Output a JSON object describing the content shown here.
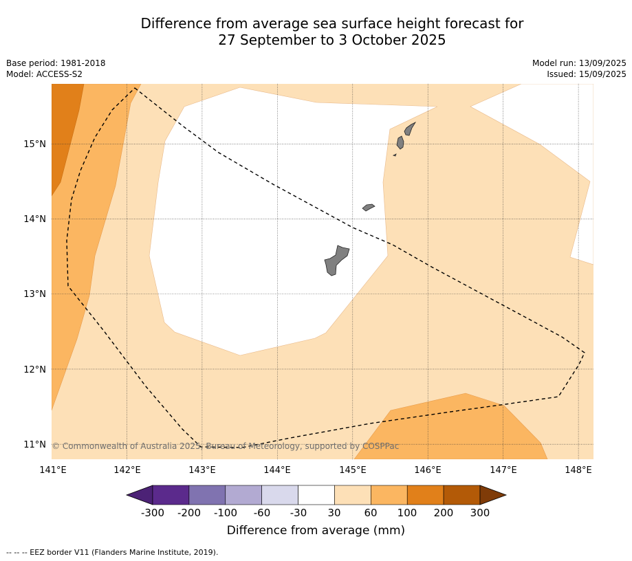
{
  "title": {
    "line1": "Difference from average sea surface height forecast for",
    "line2": "27 September to 3 October 2025"
  },
  "meta": {
    "base_period": "Base period: 1981-2018",
    "model": "Model: ACCESS-S2",
    "model_run": "Model run: 13/09/2025",
    "issued": "Issued: 15/09/2025"
  },
  "map": {
    "lon_range": [
      141,
      148.2
    ],
    "lat_range": [
      10.8,
      15.8
    ],
    "lon_ticks": [
      "141°E",
      "142°E",
      "143°E",
      "144°E",
      "145°E",
      "146°E",
      "147°E",
      "148°E"
    ],
    "lat_ticks": [
      "15°N",
      "14°N",
      "13°N",
      "12°N",
      "11°N"
    ],
    "copyright": "© Commonwealth of Australia 2025, Bureau of Meteorology, supported by COSPPac",
    "land_color": "#808080",
    "border_style": "dashed"
  },
  "colorbar": {
    "title": "Difference from average (mm)",
    "labels": [
      "-300",
      "-200",
      "-100",
      "-60",
      "-30",
      "30",
      "60",
      "100",
      "200",
      "300"
    ],
    "colors": [
      "#4c2276",
      "#5b2a8c",
      "#8073b0",
      "#b2aad2",
      "#d9d9ec",
      "#ffffff",
      "#fde0b7",
      "#fbb661",
      "#e1801a",
      "#b35a07",
      "#7f3b08"
    ]
  },
  "footer": {
    "legend": "--  --  -- EEZ border V11 (Flanders Marine Institute, 2019)."
  }
}
